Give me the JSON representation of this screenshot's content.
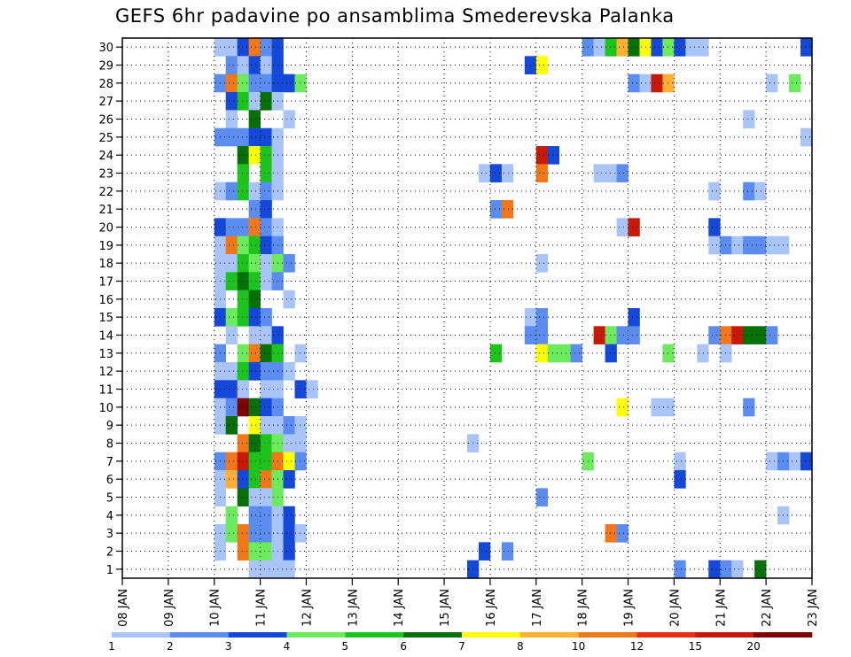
{
  "chart_data": {
    "type": "heatmap",
    "title": "GEFS 6hr padavine po ansamblima Smederevska Palanka",
    "x_ticks": [
      "08 JAN",
      "09 JAN",
      "10 JAN",
      "11 JAN",
      "12 JAN",
      "13 JAN",
      "14 JAN",
      "15 JAN",
      "16 JAN",
      "17 JAN",
      "18 JAN",
      "19 JAN",
      "20 JAN",
      "21 JAN",
      "22 JAN",
      "23 JAN"
    ],
    "y_ticks": [
      "1",
      "2",
      "3",
      "4",
      "5",
      "6",
      "7",
      "8",
      "9",
      "10",
      "11",
      "12",
      "13",
      "14",
      "15",
      "16",
      "17",
      "18",
      "19",
      "20",
      "21",
      "22",
      "23",
      "24",
      "25",
      "26",
      "27",
      "28",
      "29",
      "30"
    ],
    "x_range": [
      "2008-01-08T00:00",
      "2008-01-23T00:00"
    ],
    "y_range": [
      0,
      30
    ],
    "grid": true,
    "colorbar_labels": [
      "1",
      "2",
      "3",
      "4",
      "5",
      "6",
      "7",
      "8",
      "10",
      "12",
      "15",
      "20"
    ],
    "colorbar_colors": [
      "#a8c4f8",
      "#5b8cf0",
      "#1448d8",
      "#6cec5c",
      "#1cc41c",
      "#087008",
      "#ffff00",
      "#ffb030",
      "#f07818",
      "#e83010",
      "#c81808",
      "#800000"
    ],
    "cells": [
      [
        "10 JAN 00",
        30,
        1
      ],
      [
        "10 JAN 06",
        30,
        1
      ],
      [
        "10 JAN 12",
        30,
        3
      ],
      [
        "10 JAN 18",
        30,
        10
      ],
      [
        "11 JAN 00",
        30,
        2
      ],
      [
        "11 JAN 06",
        30,
        3
      ],
      [
        "18 JAN 00",
        30,
        2
      ],
      [
        "18 JAN 06",
        30,
        1
      ],
      [
        "18 JAN 12",
        30,
        5
      ],
      [
        "18 JAN 18",
        30,
        8
      ],
      [
        "19 JAN 00",
        30,
        6
      ],
      [
        "19 JAN 06",
        30,
        7
      ],
      [
        "19 JAN 12",
        30,
        3
      ],
      [
        "19 JAN 18",
        30,
        4
      ],
      [
        "20 JAN 00",
        30,
        3
      ],
      [
        "20 JAN 06",
        30,
        1
      ],
      [
        "20 JAN 12",
        30,
        1
      ],
      [
        "22 JAN 18",
        30,
        3
      ],
      [
        "10 JAN 06",
        29,
        2
      ],
      [
        "10 JAN 12",
        29,
        1
      ],
      [
        "10 JAN 18",
        29,
        3
      ],
      [
        "11 JAN 00",
        29,
        1
      ],
      [
        "11 JAN 06",
        29,
        3
      ],
      [
        "16 JAN 18",
        29,
        3
      ],
      [
        "17 JAN 00",
        29,
        7
      ],
      [
        "10 JAN 00",
        28,
        2
      ],
      [
        "10 JAN 06",
        28,
        10
      ],
      [
        "10 JAN 12",
        28,
        4
      ],
      [
        "10 JAN 18",
        28,
        2
      ],
      [
        "11 JAN 00",
        28,
        2
      ],
      [
        "11 JAN 06",
        28,
        3
      ],
      [
        "11 JAN 12",
        28,
        3
      ],
      [
        "11 JAN 18",
        28,
        4
      ],
      [
        "19 JAN 00",
        28,
        2
      ],
      [
        "19 JAN 06",
        28,
        1
      ],
      [
        "19 JAN 12",
        28,
        15
      ],
      [
        "19 JAN 18",
        28,
        8
      ],
      [
        "22 JAN 00",
        28,
        1
      ],
      [
        "22 JAN 12",
        28,
        4
      ],
      [
        "10 JAN 06",
        27,
        3
      ],
      [
        "10 JAN 12",
        27,
        5
      ],
      [
        "10 JAN 18",
        27,
        1
      ],
      [
        "11 JAN 00",
        27,
        6
      ],
      [
        "11 JAN 06",
        27,
        1
      ],
      [
        "10 JAN 06",
        26,
        1
      ],
      [
        "10 JAN 18",
        26,
        6
      ],
      [
        "11 JAN 12",
        26,
        1
      ],
      [
        "21 JAN 12",
        26,
        1
      ],
      [
        "10 JAN 00",
        25,
        2
      ],
      [
        "10 JAN 06",
        25,
        2
      ],
      [
        "10 JAN 12",
        25,
        2
      ],
      [
        "10 JAN 18",
        25,
        3
      ],
      [
        "11 JAN 00",
        25,
        3
      ],
      [
        "11 JAN 06",
        25,
        1
      ],
      [
        "22 JAN 18",
        25,
        1
      ],
      [
        "10 JAN 12",
        24,
        6
      ],
      [
        "10 JAN 18",
        24,
        7
      ],
      [
        "11 JAN 00",
        24,
        5
      ],
      [
        "11 JAN 06",
        24,
        1
      ],
      [
        "17 JAN 00",
        24,
        15
      ],
      [
        "17 JAN 06",
        24,
        3
      ],
      [
        "10 JAN 12",
        23,
        5
      ],
      [
        "11 JAN 00",
        23,
        5
      ],
      [
        "11 JAN 06",
        23,
        1
      ],
      [
        "15 JAN 18",
        23,
        1
      ],
      [
        "16 JAN 00",
        23,
        3
      ],
      [
        "16 JAN 06",
        23,
        1
      ],
      [
        "17 JAN 00",
        23,
        10
      ],
      [
        "18 JAN 06",
        23,
        1
      ],
      [
        "18 JAN 12",
        23,
        1
      ],
      [
        "18 JAN 18",
        23,
        2
      ],
      [
        "10 JAN 00",
        22,
        1
      ],
      [
        "10 JAN 06",
        22,
        2
      ],
      [
        "10 JAN 12",
        22,
        5
      ],
      [
        "10 JAN 18",
        22,
        1
      ],
      [
        "11 JAN 00",
        22,
        2
      ],
      [
        "11 JAN 06",
        22,
        1
      ],
      [
        "20 JAN 18",
        22,
        1
      ],
      [
        "21 JAN 12",
        22,
        2
      ],
      [
        "21 JAN 18",
        22,
        1
      ],
      [
        "10 JAN 18",
        21,
        2
      ],
      [
        "11 JAN 00",
        21,
        3
      ],
      [
        "16 JAN 00",
        21,
        2
      ],
      [
        "16 JAN 06",
        21,
        10
      ],
      [
        "10 JAN 00",
        20,
        3
      ],
      [
        "10 JAN 06",
        20,
        2
      ],
      [
        "10 JAN 12",
        20,
        2
      ],
      [
        "10 JAN 18",
        20,
        10
      ],
      [
        "11 JAN 00",
        20,
        2
      ],
      [
        "11 JAN 06",
        20,
        1
      ],
      [
        "18 JAN 18",
        20,
        1
      ],
      [
        "19 JAN 00",
        20,
        15
      ],
      [
        "20 JAN 18",
        20,
        3
      ],
      [
        "10 JAN 00",
        19,
        1
      ],
      [
        "10 JAN 06",
        19,
        10
      ],
      [
        "10 JAN 12",
        19,
        4
      ],
      [
        "10 JAN 18",
        19,
        5
      ],
      [
        "11 JAN 00",
        19,
        3
      ],
      [
        "11 JAN 06",
        19,
        2
      ],
      [
        "20 JAN 18",
        19,
        1
      ],
      [
        "21 JAN 00",
        19,
        2
      ],
      [
        "21 JAN 06",
        19,
        1
      ],
      [
        "21 JAN 12",
        19,
        2
      ],
      [
        "21 JAN 18",
        19,
        2
      ],
      [
        "22 JAN 00",
        19,
        1
      ],
      [
        "22 JAN 06",
        19,
        1
      ],
      [
        "10 JAN 00",
        18,
        1
      ],
      [
        "10 JAN 06",
        18,
        1
      ],
      [
        "10 JAN 12",
        18,
        5
      ],
      [
        "10 JAN 18",
        18,
        4
      ],
      [
        "11 JAN 00",
        18,
        1
      ],
      [
        "11 JAN 06",
        18,
        4
      ],
      [
        "11 JAN 12",
        18,
        2
      ],
      [
        "17 JAN 00",
        18,
        1
      ],
      [
        "10 JAN 00",
        17,
        1
      ],
      [
        "10 JAN 06",
        17,
        5
      ],
      [
        "10 JAN 12",
        17,
        6
      ],
      [
        "10 JAN 18",
        17,
        5
      ],
      [
        "11 JAN 00",
        17,
        1
      ],
      [
        "11 JAN 06",
        17,
        2
      ],
      [
        "10 JAN 00",
        16,
        1
      ],
      [
        "10 JAN 12",
        16,
        5
      ],
      [
        "10 JAN 18",
        16,
        6
      ],
      [
        "11 JAN 12",
        16,
        1
      ],
      [
        "10 JAN 00",
        15,
        3
      ],
      [
        "10 JAN 06",
        15,
        4
      ],
      [
        "10 JAN 12",
        15,
        5
      ],
      [
        "10 JAN 18",
        15,
        3
      ],
      [
        "11 JAN 00",
        15,
        2
      ],
      [
        "16 JAN 18",
        15,
        1
      ],
      [
        "17 JAN 00",
        15,
        2
      ],
      [
        "19 JAN 00",
        15,
        3
      ],
      [
        "10 JAN 06",
        14,
        1
      ],
      [
        "10 JAN 18",
        14,
        1
      ],
      [
        "11 JAN 00",
        14,
        1
      ],
      [
        "11 JAN 06",
        14,
        3
      ],
      [
        "16 JAN 18",
        14,
        2
      ],
      [
        "17 JAN 00",
        14,
        2
      ],
      [
        "18 JAN 06",
        14,
        15
      ],
      [
        "18 JAN 12",
        14,
        4
      ],
      [
        "18 JAN 18",
        14,
        2
      ],
      [
        "19 JAN 00",
        14,
        2
      ],
      [
        "20 JAN 18",
        14,
        2
      ],
      [
        "21 JAN 00",
        14,
        10
      ],
      [
        "21 JAN 06",
        14,
        15
      ],
      [
        "21 JAN 12",
        14,
        6
      ],
      [
        "21 JAN 18",
        14,
        6
      ],
      [
        "22 JAN 00",
        14,
        2
      ],
      [
        "10 JAN 00",
        13,
        2
      ],
      [
        "10 JAN 12",
        13,
        4
      ],
      [
        "10 JAN 18",
        13,
        10
      ],
      [
        "11 JAN 00",
        13,
        6
      ],
      [
        "11 JAN 06",
        13,
        5
      ],
      [
        "11 JAN 18",
        13,
        1
      ],
      [
        "16 JAN 00",
        13,
        5
      ],
      [
        "17 JAN 00",
        13,
        7
      ],
      [
        "17 JAN 06",
        13,
        4
      ],
      [
        "17 JAN 12",
        13,
        4
      ],
      [
        "17 JAN 18",
        13,
        2
      ],
      [
        "18 JAN 12",
        13,
        3
      ],
      [
        "19 JAN 18",
        13,
        4
      ],
      [
        "20 JAN 12",
        13,
        1
      ],
      [
        "21 JAN 00",
        13,
        1
      ],
      [
        "10 JAN 00",
        12,
        1
      ],
      [
        "10 JAN 06",
        12,
        1
      ],
      [
        "10 JAN 12",
        12,
        5
      ],
      [
        "10 JAN 18",
        12,
        3
      ],
      [
        "11 JAN 00",
        12,
        2
      ],
      [
        "11 JAN 06",
        12,
        2
      ],
      [
        "11 JAN 12",
        12,
        1
      ],
      [
        "10 JAN 00",
        11,
        3
      ],
      [
        "10 JAN 06",
        11,
        3
      ],
      [
        "10 JAN 12",
        11,
        1
      ],
      [
        "11 JAN 00",
        11,
        1
      ],
      [
        "11 JAN 06",
        11,
        1
      ],
      [
        "11 JAN 18",
        11,
        3
      ],
      [
        "12 JAN 00",
        11,
        1
      ],
      [
        "10 JAN 00",
        10,
        1
      ],
      [
        "10 JAN 06",
        10,
        2
      ],
      [
        "10 JAN 12",
        10,
        20
      ],
      [
        "10 JAN 18",
        10,
        6
      ],
      [
        "11 JAN 00",
        10,
        3
      ],
      [
        "11 JAN 06",
        10,
        2
      ],
      [
        "18 JAN 18",
        10,
        7
      ],
      [
        "19 JAN 12",
        10,
        1
      ],
      [
        "19 JAN 18",
        10,
        1
      ],
      [
        "21 JAN 12",
        10,
        2
      ],
      [
        "10 JAN 00",
        9,
        1
      ],
      [
        "10 JAN 06",
        9,
        6
      ],
      [
        "10 JAN 18",
        9,
        7
      ],
      [
        "11 JAN 00",
        9,
        1
      ],
      [
        "11 JAN 06",
        9,
        1
      ],
      [
        "11 JAN 12",
        9,
        2
      ],
      [
        "11 JAN 18",
        9,
        1
      ],
      [
        "10 JAN 12",
        8,
        10
      ],
      [
        "10 JAN 18",
        8,
        6
      ],
      [
        "11 JAN 00",
        8,
        5
      ],
      [
        "11 JAN 06",
        8,
        4
      ],
      [
        "11 JAN 12",
        8,
        1
      ],
      [
        "11 JAN 18",
        8,
        1
      ],
      [
        "15 JAN 12",
        8,
        1
      ],
      [
        "10 JAN 00",
        7,
        2
      ],
      [
        "10 JAN 06",
        7,
        10
      ],
      [
        "10 JAN 12",
        7,
        15
      ],
      [
        "10 JAN 18",
        7,
        5
      ],
      [
        "11 JAN 00",
        7,
        5
      ],
      [
        "11 JAN 06",
        7,
        10
      ],
      [
        "11 JAN 12",
        7,
        7
      ],
      [
        "11 JAN 18",
        7,
        2
      ],
      [
        "18 JAN 00",
        7,
        4
      ],
      [
        "20 JAN 00",
        7,
        1
      ],
      [
        "22 JAN 00",
        7,
        1
      ],
      [
        "22 JAN 06",
        7,
        2
      ],
      [
        "22 JAN 12",
        7,
        1
      ],
      [
        "22 JAN 18",
        7,
        3
      ],
      [
        "10 JAN 00",
        6,
        1
      ],
      [
        "10 JAN 06",
        6,
        8
      ],
      [
        "10 JAN 12",
        6,
        3
      ],
      [
        "10 JAN 18",
        6,
        5
      ],
      [
        "11 JAN 00",
        6,
        10
      ],
      [
        "11 JAN 06",
        6,
        4
      ],
      [
        "11 JAN 12",
        6,
        3
      ],
      [
        "20 JAN 00",
        6,
        3
      ],
      [
        "10 JAN 00",
        5,
        1
      ],
      [
        "10 JAN 12",
        5,
        6
      ],
      [
        "10 JAN 18",
        5,
        1
      ],
      [
        "11 JAN 00",
        5,
        1
      ],
      [
        "11 JAN 06",
        5,
        4
      ],
      [
        "17 JAN 00",
        5,
        2
      ],
      [
        "10 JAN 06",
        4,
        4
      ],
      [
        "10 JAN 18",
        4,
        2
      ],
      [
        "11 JAN 00",
        4,
        2
      ],
      [
        "11 JAN 06",
        4,
        1
      ],
      [
        "11 JAN 12",
        4,
        3
      ],
      [
        "22 JAN 06",
        4,
        1
      ],
      [
        "10 JAN 00",
        3,
        1
      ],
      [
        "10 JAN 06",
        3,
        4
      ],
      [
        "10 JAN 12",
        3,
        10
      ],
      [
        "10 JAN 18",
        3,
        2
      ],
      [
        "11 JAN 00",
        3,
        2
      ],
      [
        "11 JAN 06",
        3,
        1
      ],
      [
        "11 JAN 12",
        3,
        3
      ],
      [
        "11 JAN 18",
        3,
        1
      ],
      [
        "18 JAN 12",
        3,
        10
      ],
      [
        "18 JAN 18",
        3,
        2
      ],
      [
        "10 JAN 00",
        2,
        1
      ],
      [
        "10 JAN 12",
        2,
        10
      ],
      [
        "10 JAN 18",
        2,
        4
      ],
      [
        "11 JAN 00",
        2,
        4
      ],
      [
        "11 JAN 06",
        2,
        1
      ],
      [
        "11 JAN 12",
        2,
        3
      ],
      [
        "15 JAN 18",
        2,
        3
      ],
      [
        "16 JAN 06",
        2,
        2
      ],
      [
        "10 JAN 18",
        1,
        1
      ],
      [
        "11 JAN 00",
        1,
        1
      ],
      [
        "11 JAN 06",
        1,
        1
      ],
      [
        "11 JAN 12",
        1,
        1
      ],
      [
        "15 JAN 12",
        1,
        3
      ],
      [
        "20 JAN 00",
        1,
        2
      ],
      [
        "20 JAN 18",
        1,
        3
      ],
      [
        "21 JAN 00",
        1,
        2
      ],
      [
        "21 JAN 06",
        1,
        1
      ],
      [
        "21 JAN 18",
        1,
        6
      ]
    ]
  }
}
